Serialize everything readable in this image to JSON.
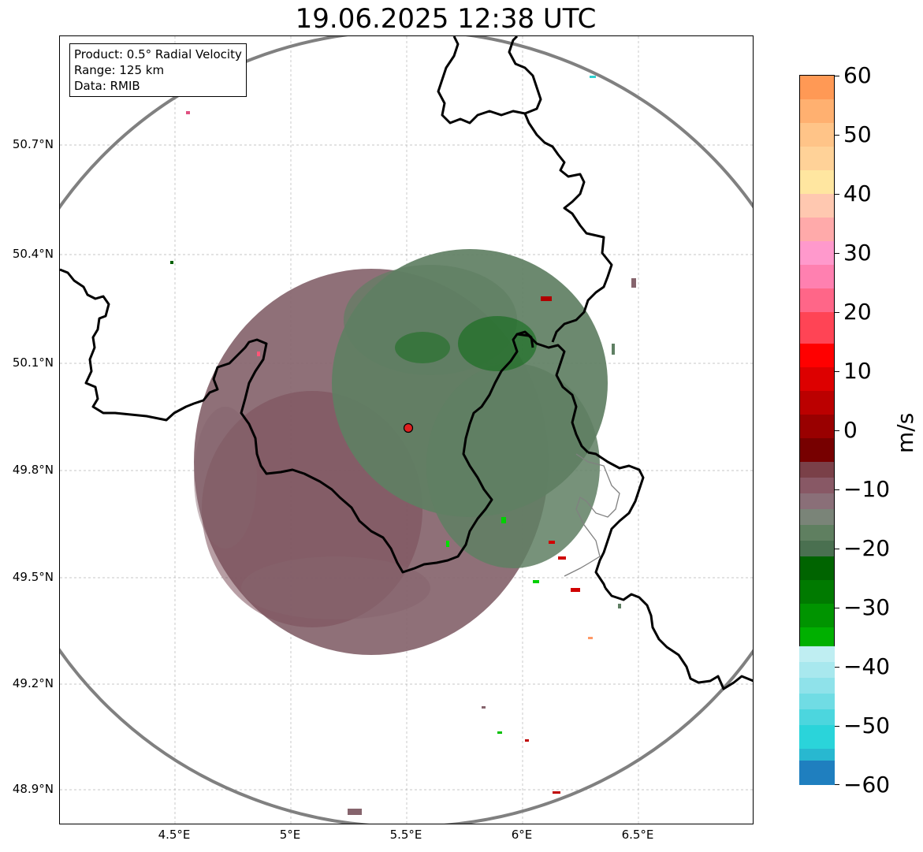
{
  "title": "19.06.2025 12:38 UTC",
  "info": {
    "product": "Product: 0.5° Radial Velocity",
    "range": "Range: 125 km",
    "source": "Data: RMIB"
  },
  "axes": {
    "lat_ticks": [
      "50.7°N",
      "50.4°N",
      "50.1°N",
      "49.8°N",
      "49.5°N",
      "49.2°N",
      "48.9°N"
    ],
    "lon_ticks": [
      "4.5°E",
      "5°E",
      "5.5°E",
      "6°E",
      "6.5°E"
    ]
  },
  "colorbar": {
    "unit": "m/s",
    "ticks": [
      "60",
      "50",
      "40",
      "30",
      "20",
      "10",
      "0",
      "−10",
      "−20",
      "−30",
      "−40",
      "−50",
      "−60"
    ]
  },
  "radar_site": {
    "lon": 5.5,
    "lat": 49.91,
    "marker_color": "#e02020"
  },
  "colors": {
    "inbound_far": "#1f7fbf",
    "inbound": "#00cc00",
    "near_zero_negative": "#5a8060",
    "near_zero_positive": "#8a6a70",
    "outbound": "#c00000",
    "outbound_far": "#ff9966",
    "range_ring": "#808080"
  }
}
